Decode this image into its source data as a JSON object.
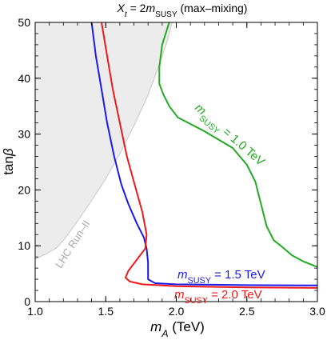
{
  "chart_data": {
    "type": "line",
    "title": {
      "parts": [
        {
          "text": "X",
          "style": "italic"
        },
        {
          "text": "t",
          "style": "sub-italic"
        },
        {
          "text": " = 2",
          "style": "normal"
        },
        {
          "text": "m",
          "style": "italic"
        },
        {
          "text": "SUSY",
          "style": "sub"
        },
        {
          "text": " (max–mixing)",
          "style": "normal"
        }
      ]
    },
    "xlabel": {
      "parts": [
        {
          "text": "m",
          "style": "italic"
        },
        {
          "text": "A",
          "style": "sub-italic"
        },
        {
          "text": " (TeV)",
          "style": "normal"
        }
      ]
    },
    "ylabel": {
      "parts": [
        {
          "text": "tan",
          "style": "normal"
        },
        {
          "text": "β",
          "style": "italic"
        }
      ]
    },
    "xlim": [
      1.0,
      3.0
    ],
    "ylim": [
      0,
      50
    ],
    "xticks": [
      "1.0",
      "1.5",
      "2.0",
      "2.5",
      "3.0"
    ],
    "yticks": [
      "0",
      "10",
      "20",
      "30",
      "40",
      "50"
    ],
    "grid": false,
    "excluded_region": {
      "name": "LHC Run–II",
      "color": "#ececec",
      "edge_color": "#cfcfcf",
      "boundary": [
        [
          1.0,
          7.6
        ],
        [
          1.08,
          8.6
        ],
        [
          1.15,
          9.6
        ],
        [
          1.2,
          11.0
        ],
        [
          1.26,
          13.0
        ],
        [
          1.33,
          15.5
        ],
        [
          1.41,
          18.5
        ],
        [
          1.5,
          22.0
        ],
        [
          1.6,
          26.5
        ],
        [
          1.7,
          31.5
        ],
        [
          1.8,
          37.0
        ],
        [
          1.88,
          42.5
        ],
        [
          1.94,
          47.0
        ],
        [
          1.97,
          50.0
        ]
      ]
    },
    "series": [
      {
        "color": "#22aa22",
        "label": {
          "parts": [
            {
              "text": "m",
              "style": "italic"
            },
            {
              "text": "SUSY",
              "style": "sub"
            },
            {
              "text": " = 1.0 TeV",
              "style": "normal"
            }
          ]
        },
        "points": [
          [
            1.95,
            50.0
          ],
          [
            1.9,
            46.0
          ],
          [
            1.88,
            42.0
          ],
          [
            1.88,
            39.0
          ],
          [
            1.91,
            37.0
          ],
          [
            1.95,
            35.0
          ],
          [
            1.98,
            34.0
          ],
          [
            2.01,
            33.0
          ],
          [
            2.2,
            30.5
          ],
          [
            2.4,
            27.5
          ],
          [
            2.5,
            24.5
          ],
          [
            2.56,
            21.5
          ],
          [
            2.6,
            17.5
          ],
          [
            2.64,
            13.5
          ],
          [
            2.69,
            11.0
          ],
          [
            2.76,
            9.6
          ],
          [
            2.82,
            8.3
          ],
          [
            2.9,
            7.2
          ],
          [
            3.0,
            6.2
          ]
        ]
      },
      {
        "color": "#1a1aee",
        "label": {
          "parts": [
            {
              "text": "m",
              "style": "italic"
            },
            {
              "text": "SUSY",
              "style": "sub"
            },
            {
              "text": " = 1.5 TeV",
              "style": "normal"
            }
          ]
        },
        "points": [
          [
            1.4,
            50.0
          ],
          [
            1.43,
            44.0
          ],
          [
            1.47,
            38.0
          ],
          [
            1.51,
            32.0
          ],
          [
            1.56,
            26.0
          ],
          [
            1.61,
            21.0
          ],
          [
            1.66,
            17.5
          ],
          [
            1.72,
            14.0
          ],
          [
            1.77,
            11.5
          ],
          [
            1.79,
            9.5
          ],
          [
            1.8,
            7.0
          ],
          [
            1.8,
            4.0
          ],
          [
            1.85,
            3.3
          ],
          [
            2.0,
            3.1
          ],
          [
            2.5,
            2.95
          ],
          [
            3.0,
            2.9
          ]
        ]
      },
      {
        "color": "#ee1a1a",
        "label": {
          "parts": [
            {
              "text": "m",
              "style": "italic"
            },
            {
              "text": "SUSY",
              "style": "sub"
            },
            {
              "text": " = 2.0 TeV",
              "style": "normal"
            }
          ]
        },
        "points": [
          [
            1.47,
            50.0
          ],
          [
            1.51,
            44.0
          ],
          [
            1.55,
            38.0
          ],
          [
            1.6,
            32.0
          ],
          [
            1.65,
            26.0
          ],
          [
            1.71,
            20.5
          ],
          [
            1.76,
            16.0
          ],
          [
            1.79,
            12.0
          ],
          [
            1.78,
            9.5
          ],
          [
            1.72,
            7.5
          ],
          [
            1.66,
            5.5
          ],
          [
            1.64,
            4.3
          ],
          [
            1.67,
            3.6
          ],
          [
            1.76,
            3.1
          ],
          [
            2.0,
            2.75
          ],
          [
            2.5,
            2.55
          ],
          [
            3.0,
            2.45
          ]
        ]
      }
    ]
  }
}
